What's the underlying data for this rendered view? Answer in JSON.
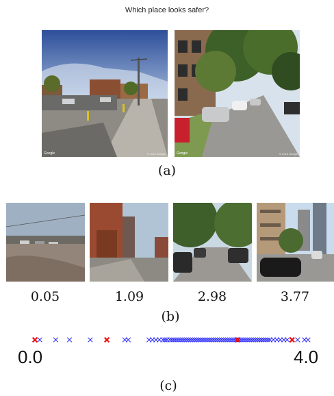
{
  "question": "Which place looks safer?",
  "top_pair": [
    {
      "name": "left",
      "watermark": "Google",
      "credit": "© 2016 Google"
    },
    {
      "name": "right",
      "watermark": "Google",
      "credit": "© 2016 Google"
    }
  ],
  "captions": {
    "a": "(a)",
    "b": "(b)",
    "c": "(c)"
  },
  "examples": [
    {
      "score": "0.05"
    },
    {
      "score": "1.09"
    },
    {
      "score": "2.98"
    },
    {
      "score": "3.77"
    }
  ],
  "axis": {
    "min_label": "0.0",
    "max_label": "4.0",
    "min": 0.0,
    "max": 4.0
  },
  "colors": {
    "dataset_marker": "#1a1aff",
    "highlight_marker": "#ee1111"
  },
  "scores_blue": [
    0.05,
    0.12,
    0.35,
    0.55,
    0.85,
    1.35,
    1.4,
    1.7,
    1.75,
    1.8,
    1.85,
    1.9,
    1.93,
    1.96,
    2.0,
    2.03,
    2.06,
    2.09,
    2.12,
    2.15,
    2.18,
    2.21,
    2.24,
    2.27,
    2.3,
    2.33,
    2.36,
    2.39,
    2.42,
    2.45,
    2.48,
    2.51,
    2.54,
    2.57,
    2.6,
    2.63,
    2.66,
    2.69,
    2.72,
    2.75,
    2.78,
    2.81,
    2.84,
    2.87,
    2.9,
    2.93,
    2.96,
    3.0,
    3.03,
    3.06,
    3.09,
    3.12,
    3.15,
    3.18,
    3.21,
    3.24,
    3.27,
    3.3,
    3.33,
    3.36,
    3.39,
    3.42,
    3.45,
    3.5,
    3.55,
    3.6,
    3.65,
    3.7,
    3.85,
    3.95,
    4.0
  ],
  "scores_red": [
    0.05,
    1.09,
    2.98,
    3.77
  ]
}
